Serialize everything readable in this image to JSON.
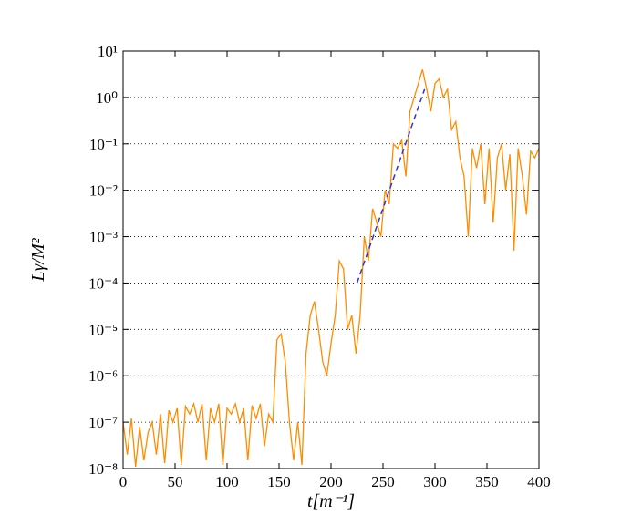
{
  "chart_data": {
    "type": "line",
    "xlabel": "t[m⁻¹]",
    "ylabel": "Lγ/M²",
    "log_y": true,
    "grid": true,
    "xlim": [
      0,
      400
    ],
    "xticks": [
      0,
      50,
      100,
      150,
      200,
      250,
      300,
      350,
      400
    ],
    "ylim": [
      1e-08,
      10
    ],
    "yticks": [
      {
        "value": 1e-08,
        "label": "10⁻⁸"
      },
      {
        "value": 1e-07,
        "label": "10⁻⁷"
      },
      {
        "value": 1e-06,
        "label": "10⁻⁶"
      },
      {
        "value": 1e-05,
        "label": "10⁻⁵"
      },
      {
        "value": 0.0001,
        "label": "10⁻⁴"
      },
      {
        "value": 0.001,
        "label": "10⁻³"
      },
      {
        "value": 0.01,
        "label": "10⁻²"
      },
      {
        "value": 0.1,
        "label": "10⁻¹"
      },
      {
        "value": 1,
        "label": "10⁰"
      },
      {
        "value": 10,
        "label": "10¹"
      }
    ],
    "series": [
      {
        "color": "#ff8c00",
        "dashed": false,
        "x": [
          0,
          4,
          8,
          12,
          16,
          20,
          24,
          28,
          32,
          36,
          40,
          44,
          48,
          52,
          56,
          60,
          64,
          68,
          72,
          76,
          80,
          84,
          88,
          92,
          96,
          100,
          104,
          108,
          112,
          116,
          120,
          124,
          128,
          132,
          136,
          140,
          144,
          148,
          152,
          156,
          160,
          164,
          168,
          172,
          176,
          180,
          184,
          188,
          192,
          196,
          200,
          204,
          208,
          212,
          216,
          220,
          224,
          228,
          232,
          236,
          240,
          244,
          248,
          252,
          256,
          260,
          264,
          268,
          272,
          276,
          280,
          284,
          288,
          292,
          296,
          300,
          304,
          308,
          312,
          316,
          320,
          324,
          328,
          332,
          336,
          340,
          344,
          348,
          352,
          356,
          360,
          364,
          368,
          372,
          376,
          380,
          384,
          388,
          392,
          396,
          400
        ],
        "values": [
          1e-07,
          2e-08,
          1.2e-07,
          1.1e-08,
          8e-08,
          1.5e-08,
          6e-08,
          1e-07,
          2e-08,
          1.5e-07,
          1.3e-08,
          1.8e-07,
          1e-07,
          2e-07,
          1.2e-08,
          2.2e-07,
          1.5e-07,
          2.5e-07,
          1e-07,
          2.5e-07,
          1.5e-08,
          2e-07,
          1e-07,
          2.5e-07,
          1.2e-08,
          2e-07,
          1.5e-07,
          2.5e-07,
          1e-07,
          2e-07,
          1.5e-08,
          2.3e-07,
          1.2e-07,
          2.5e-07,
          3e-08,
          1.5e-07,
          1e-07,
          6e-06,
          8e-06,
          2e-06,
          1e-07,
          1.5e-08,
          1e-07,
          1.2e-08,
          3e-06,
          2e-05,
          4e-05,
          1e-05,
          2e-06,
          1e-06,
          5e-06,
          2e-05,
          0.0003,
          0.0002,
          1e-05,
          2e-05,
          3e-06,
          2e-05,
          0.001,
          0.0003,
          0.004,
          0.002,
          0.001,
          0.01,
          0.005,
          0.1,
          0.08,
          0.12,
          0.02,
          0.5,
          1,
          2,
          4,
          1.5,
          0.5,
          2,
          2.5,
          1,
          1.5,
          0.2,
          0.3,
          0.05,
          0.02,
          0.001,
          0.08,
          0.03,
          0.1,
          0.005,
          0.08,
          0.002,
          0.05,
          0.1,
          0.01,
          0.06,
          0.0005,
          0.08,
          0.02,
          0.003,
          0.07,
          0.05,
          0.08
        ]
      },
      {
        "color": "#3333cc",
        "dashed": true,
        "x": [
          225,
          290
        ],
        "values": [
          0.0001,
          1.5
        ]
      }
    ]
  }
}
